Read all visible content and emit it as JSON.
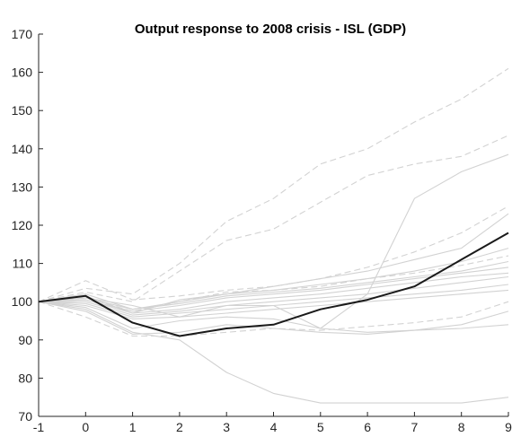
{
  "chart_data": {
    "type": "line",
    "title": "Output response to 2008 crisis - ISL (GDP)",
    "xlabel": "",
    "ylabel": "",
    "xlim": [
      -1,
      9
    ],
    "ylim": [
      70,
      170
    ],
    "x_ticks": [
      -1,
      0,
      1,
      2,
      3,
      4,
      5,
      6,
      7,
      8,
      9
    ],
    "y_ticks": [
      70,
      80,
      90,
      100,
      110,
      120,
      130,
      140,
      150,
      160,
      170
    ],
    "grid": false,
    "legend": "none",
    "x": [
      -1,
      0,
      1,
      2,
      3,
      4,
      5,
      6,
      7,
      8,
      9
    ],
    "colors": {
      "highlight": "#1a1a1a",
      "comparison": "#d2d2d2",
      "axis": "#262626"
    },
    "series": [
      {
        "role": "highlight",
        "style": "solid",
        "values": [
          100,
          101.5,
          94.5,
          91,
          93,
          94,
          98,
          100.5,
          104,
          111,
          118
        ]
      },
      {
        "role": "comparison",
        "style": "dashed",
        "values": [
          100,
          103.5,
          102,
          110,
          121,
          127,
          136,
          140,
          147,
          153,
          161
        ]
      },
      {
        "role": "comparison",
        "style": "dashed",
        "values": [
          100,
          102.5,
          100,
          108,
          116,
          119,
          126,
          133,
          136,
          138,
          143.5
        ]
      },
      {
        "role": "comparison",
        "style": "solid",
        "values": [
          100,
          101,
          99,
          96,
          99,
          99,
          93,
          102,
          127,
          134,
          138.5
        ]
      },
      {
        "role": "comparison",
        "style": "dashed",
        "values": [
          100,
          105.5,
          100.5,
          101.5,
          103,
          104,
          106,
          109,
          113,
          118,
          125
        ]
      },
      {
        "role": "comparison",
        "style": "solid",
        "values": [
          100,
          102,
          98,
          100,
          102,
          104,
          106,
          108,
          111,
          114,
          123
        ]
      },
      {
        "role": "comparison",
        "style": "solid",
        "values": [
          100,
          101.5,
          97,
          100.5,
          102,
          103,
          104.5,
          106,
          108,
          110.5,
          114
        ]
      },
      {
        "role": "comparison",
        "style": "dashed",
        "values": [
          100,
          101,
          97.5,
          100,
          102.5,
          103,
          104,
          106,
          107.5,
          109.5,
          112
        ]
      },
      {
        "role": "comparison",
        "style": "solid",
        "values": [
          100,
          101,
          98,
          99.5,
          101.5,
          102.5,
          103.5,
          105,
          106.5,
          108,
          110.5
        ]
      },
      {
        "role": "comparison",
        "style": "solid",
        "values": [
          100,
          100.5,
          97.5,
          99,
          101,
          102,
          103,
          104.5,
          106,
          107.5,
          109
        ]
      },
      {
        "role": "comparison",
        "style": "solid",
        "values": [
          100,
          100.5,
          97,
          98,
          100,
          101,
          102,
          103.5,
          105,
          106.5,
          107.5
        ]
      },
      {
        "role": "comparison",
        "style": "solid",
        "values": [
          100,
          100,
          96.5,
          97.5,
          99,
          100,
          101,
          102,
          103.5,
          105,
          106.5
        ]
      },
      {
        "role": "comparison",
        "style": "solid",
        "values": [
          100,
          99.5,
          96,
          97,
          98,
          99,
          100,
          101,
          102,
          103,
          104.5
        ]
      },
      {
        "role": "comparison",
        "style": "solid",
        "values": [
          100,
          99,
          95.5,
          96,
          97,
          98,
          99,
          100,
          101,
          102,
          103
        ]
      },
      {
        "role": "comparison",
        "style": "solid",
        "values": [
          100,
          98.5,
          93,
          95,
          96,
          95.5,
          93,
          92,
          92.5,
          94,
          97.5
        ]
      },
      {
        "role": "comparison",
        "style": "solid",
        "values": [
          100,
          97.5,
          91.5,
          92,
          94,
          93,
          92,
          91.5,
          92.5,
          93,
          94
        ]
      },
      {
        "role": "comparison",
        "style": "dashed",
        "values": [
          100,
          96,
          91,
          91,
          92,
          93,
          92.5,
          93.5,
          94.5,
          96,
          100
        ]
      },
      {
        "role": "comparison",
        "style": "solid",
        "values": [
          100,
          98,
          92,
          90,
          81.5,
          76,
          73.5,
          73.5,
          73.5,
          73.5,
          75
        ]
      }
    ]
  }
}
